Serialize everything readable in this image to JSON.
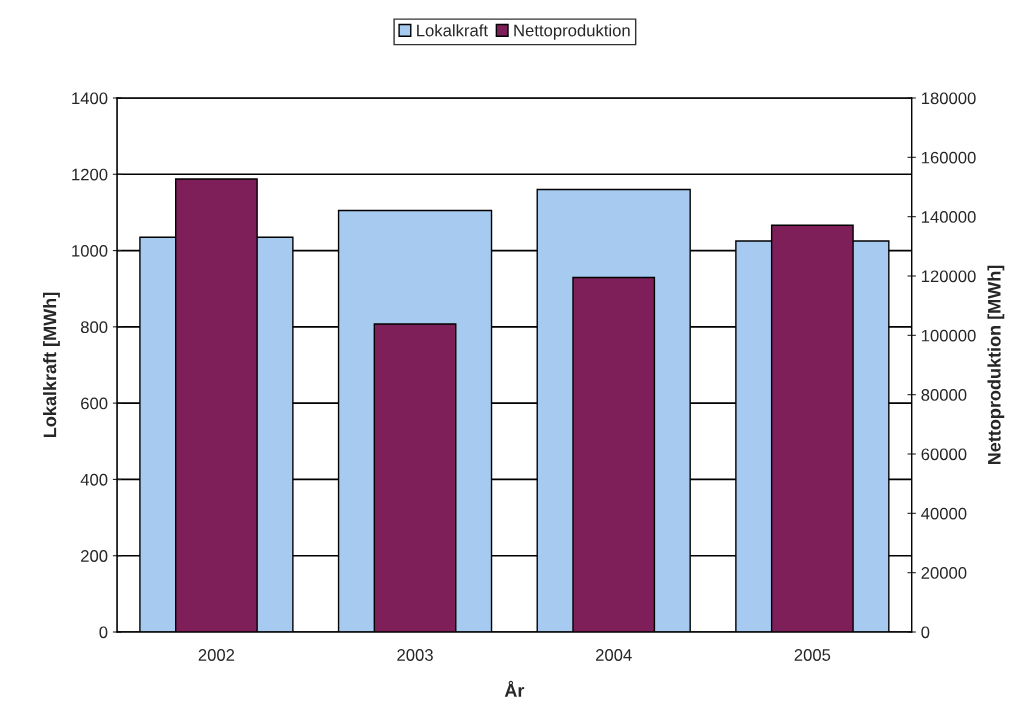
{
  "chart_data": {
    "type": "bar",
    "xlabel": "År",
    "ylabel": "Lokalkraft [MWh]",
    "y2label": "Nettoproduktion [MWh]",
    "categories": [
      "2002",
      "2003",
      "2004",
      "2005"
    ],
    "series": [
      {
        "name": "Lokalkraft",
        "color": "#a6caf0",
        "values": [
          1035,
          1105,
          1160,
          1025
        ]
      },
      {
        "name": "Nettoproduktion",
        "color": "#7f1f5a",
        "values": [
          152700,
          103800,
          119500,
          137100
        ],
        "axis": "y2"
      }
    ],
    "ylim": [
      0,
      1400
    ],
    "yticks": [
      0,
      200,
      400,
      600,
      800,
      1000,
      1200,
      1400
    ],
    "y2lim": [
      0,
      180000
    ],
    "y2ticks": [
      0,
      20000,
      40000,
      60000,
      80000,
      100000,
      120000,
      140000,
      160000,
      180000
    ],
    "grid": "y",
    "legend": "top"
  }
}
